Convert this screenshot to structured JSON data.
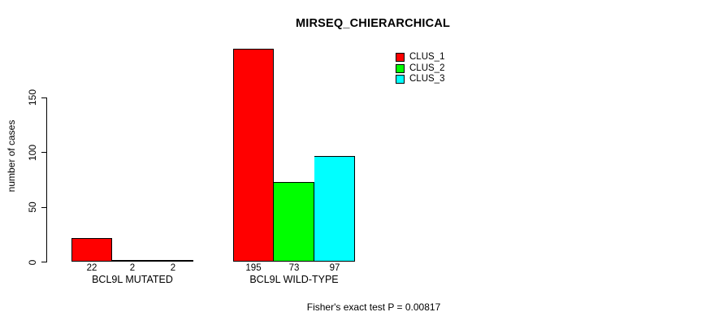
{
  "chart_data": {
    "type": "bar",
    "title": "MIRSEQ_CHIERARCHICAL",
    "ylabel": "number of cases",
    "xlabel": "",
    "categories": [
      "BCL9L MUTATED",
      "BCL9L WILD-TYPE"
    ],
    "series": [
      {
        "name": "CLUS_1",
        "color": "#ff0000",
        "values": [
          22,
          195
        ]
      },
      {
        "name": "CLUS_2",
        "color": "#00ff00",
        "values": [
          2,
          73
        ]
      },
      {
        "name": "CLUS_3",
        "color": "#00ffff",
        "values": [
          2,
          97
        ]
      }
    ],
    "yticks": [
      0,
      50,
      100,
      150
    ],
    "ylim": [
      0,
      200
    ],
    "grid": false,
    "legend_position": "top-right",
    "bar_value_labels": true,
    "footnote": "Fisher's exact test P = 0.00817",
    "colors": {
      "bar_border": "#000000",
      "text": "#000000",
      "background": "#ffffff"
    }
  }
}
